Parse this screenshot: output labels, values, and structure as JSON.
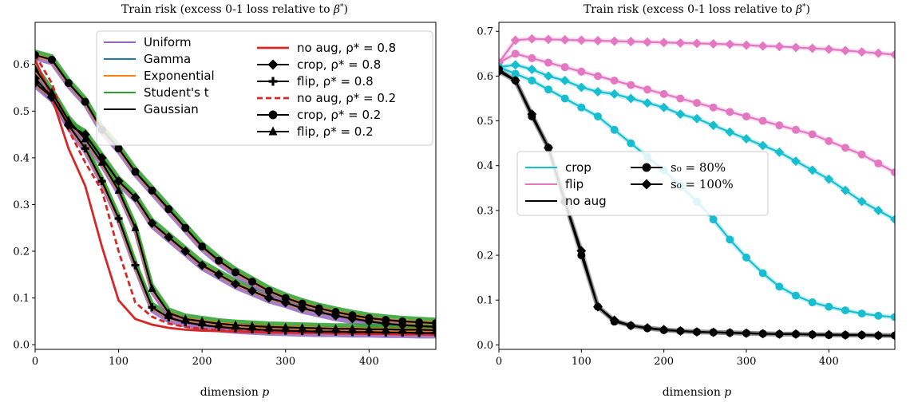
{
  "chart_data": [
    {
      "type": "line",
      "title": "Train risk (excess 0-1 loss relative to β*)",
      "xlabel": "dimension p",
      "ylabel": "",
      "xlim": [
        0,
        480
      ],
      "ylim": [
        -0.01,
        0.69
      ],
      "xticks": [
        "0",
        "100",
        "200",
        "300",
        "400"
      ],
      "xtick_values": [
        0,
        100,
        200,
        300,
        400
      ],
      "yticks": [
        "0.0",
        "0.1",
        "0.2",
        "0.3",
        "0.4",
        "0.5",
        "0.6"
      ],
      "ytick_values": [
        0.0,
        0.1,
        0.2,
        0.3,
        0.4,
        0.5,
        0.6
      ],
      "legend_position": "top-right",
      "legend": [
        {
          "label": "Uniform",
          "color": "#9467bd",
          "style": "solid"
        },
        {
          "label": "Gamma",
          "color": "#1f77b4",
          "style": "solid"
        },
        {
          "label": "Exponential",
          "color": "#ff7f0e",
          "style": "solid"
        },
        {
          "label": "Student's t",
          "color": "#2ca02c",
          "style": "solid"
        },
        {
          "label": "Gaussian",
          "color": "#000000",
          "style": "solid"
        },
        {
          "label": "no aug, ρ* = 0.8",
          "color": "#d62728",
          "style": "solid"
        },
        {
          "label": "crop, ρ* = 0.8",
          "color": "#000000",
          "style": "solid",
          "marker": "diamond"
        },
        {
          "label": "flip, ρ* = 0.8",
          "color": "#000000",
          "style": "solid",
          "marker": "plus"
        },
        {
          "label": "no aug, ρ* = 0.2",
          "color": "#d62728",
          "style": "dashed"
        },
        {
          "label": "crop, ρ* = 0.2",
          "color": "#000000",
          "style": "solid",
          "marker": "circle"
        },
        {
          "label": "flip, ρ* = 0.2",
          "color": "#000000",
          "style": "solid",
          "marker": "triangle"
        }
      ],
      "x": [
        0,
        20,
        40,
        60,
        80,
        100,
        120,
        140,
        160,
        180,
        200,
        220,
        240,
        260,
        280,
        300,
        320,
        340,
        360,
        380,
        400,
        420,
        440,
        460,
        480
      ],
      "series": [
        {
          "name": "no aug, ρ* = 0.8",
          "color": "#d62728",
          "style": "solid",
          "values": [
            0.61,
            0.53,
            0.42,
            0.34,
            0.21,
            0.095,
            0.055,
            0.043,
            0.036,
            0.032,
            0.03,
            0.029,
            0.028,
            0.027,
            0.026,
            0.026,
            0.025,
            0.025,
            0.024,
            0.024,
            0.023,
            0.023,
            0.022,
            0.022,
            0.021
          ]
        },
        {
          "name": "no aug, ρ* = 0.2",
          "color": "#d62728",
          "style": "dashed",
          "values": [
            0.62,
            0.56,
            0.46,
            0.39,
            0.33,
            0.2,
            0.09,
            0.06,
            0.045,
            0.038,
            0.034,
            0.031,
            0.03,
            0.029,
            0.028,
            0.027,
            0.026,
            0.026,
            0.025,
            0.025,
            0.024,
            0.024,
            0.023,
            0.023,
            0.022
          ]
        },
        {
          "name": "crop, ρ* = 0.8",
          "color": "#000000",
          "style": "solid",
          "marker": "diamond",
          "values": [
            0.57,
            0.53,
            0.47,
            0.45,
            0.4,
            0.35,
            0.315,
            0.26,
            0.23,
            0.2,
            0.17,
            0.15,
            0.13,
            0.115,
            0.1,
            0.09,
            0.078,
            0.07,
            0.062,
            0.056,
            0.05,
            0.045,
            0.042,
            0.04,
            0.038
          ]
        },
        {
          "name": "crop, ρ* = 0.2",
          "color": "#000000",
          "style": "solid",
          "marker": "circle",
          "values": [
            0.62,
            0.61,
            0.56,
            0.52,
            0.46,
            0.42,
            0.37,
            0.33,
            0.29,
            0.25,
            0.21,
            0.18,
            0.155,
            0.135,
            0.115,
            0.1,
            0.088,
            0.078,
            0.07,
            0.063,
            0.057,
            0.053,
            0.05,
            0.048,
            0.046
          ]
        },
        {
          "name": "flip, ρ* = 0.8",
          "color": "#000000",
          "style": "solid",
          "marker": "plus",
          "values": [
            0.56,
            0.53,
            0.47,
            0.42,
            0.35,
            0.27,
            0.17,
            0.08,
            0.058,
            0.048,
            0.042,
            0.038,
            0.035,
            0.033,
            0.031,
            0.03,
            0.029,
            0.028,
            0.028,
            0.027,
            0.027,
            0.026,
            0.026,
            0.025,
            0.025
          ]
        },
        {
          "name": "flip, ρ* = 0.2",
          "color": "#000000",
          "style": "solid",
          "marker": "triangle",
          "values": [
            0.59,
            0.54,
            0.48,
            0.44,
            0.39,
            0.33,
            0.25,
            0.12,
            0.068,
            0.055,
            0.05,
            0.045,
            0.042,
            0.04,
            0.038,
            0.037,
            0.036,
            0.035,
            0.034,
            0.034,
            0.033,
            0.033,
            0.032,
            0.032,
            0.031
          ]
        }
      ]
    },
    {
      "type": "line",
      "title": "Train risk (excess 0-1 loss relative to β*)",
      "xlabel": "dimension p",
      "ylabel": "",
      "xlim": [
        0,
        480
      ],
      "ylim": [
        -0.01,
        0.72
      ],
      "xticks": [
        "0",
        "100",
        "200",
        "300",
        "400"
      ],
      "xtick_values": [
        0,
        100,
        200,
        300,
        400
      ],
      "yticks": [
        "0.0",
        "0.1",
        "0.2",
        "0.3",
        "0.4",
        "0.5",
        "0.6",
        "0.7"
      ],
      "ytick_values": [
        0.0,
        0.1,
        0.2,
        0.3,
        0.4,
        0.5,
        0.6,
        0.7
      ],
      "legend_position": "center-left",
      "legend": [
        {
          "label": "crop",
          "color": "#17becf",
          "style": "solid"
        },
        {
          "label": "flip",
          "color": "#e377c2",
          "style": "solid"
        },
        {
          "label": "no aug",
          "color": "#000000",
          "style": "solid"
        },
        {
          "label": "s₀ = 80%",
          "color": "#000000",
          "style": "solid",
          "marker": "circle"
        },
        {
          "label": "s₀ = 100%",
          "color": "#000000",
          "style": "solid",
          "marker": "diamond"
        }
      ],
      "x": [
        0,
        20,
        40,
        60,
        80,
        100,
        120,
        140,
        160,
        180,
        200,
        220,
        240,
        260,
        280,
        300,
        320,
        340,
        360,
        380,
        400,
        420,
        440,
        460,
        480
      ],
      "series": [
        {
          "name": "flip, s₀ = 100%",
          "color": "#e377c2",
          "marker": "diamond",
          "values": [
            0.63,
            0.68,
            0.683,
            0.682,
            0.681,
            0.68,
            0.679,
            0.678,
            0.677,
            0.676,
            0.675,
            0.674,
            0.673,
            0.672,
            0.671,
            0.669,
            0.667,
            0.666,
            0.664,
            0.662,
            0.66,
            0.657,
            0.654,
            0.651,
            0.648
          ]
        },
        {
          "name": "flip, s₀ = 80%",
          "color": "#e377c2",
          "marker": "circle",
          "values": [
            0.63,
            0.65,
            0.64,
            0.63,
            0.62,
            0.61,
            0.6,
            0.59,
            0.58,
            0.57,
            0.56,
            0.55,
            0.54,
            0.53,
            0.52,
            0.51,
            0.5,
            0.49,
            0.48,
            0.47,
            0.455,
            0.44,
            0.425,
            0.405,
            0.385
          ]
        },
        {
          "name": "crop, s₀ = 100%",
          "color": "#17becf",
          "marker": "diamond",
          "values": [
            0.62,
            0.625,
            0.615,
            0.6,
            0.59,
            0.575,
            0.565,
            0.56,
            0.55,
            0.54,
            0.53,
            0.515,
            0.505,
            0.49,
            0.475,
            0.46,
            0.445,
            0.43,
            0.41,
            0.39,
            0.37,
            0.345,
            0.32,
            0.3,
            0.28
          ]
        },
        {
          "name": "crop, s₀ = 80%",
          "color": "#17becf",
          "marker": "circle",
          "values": [
            0.62,
            0.605,
            0.59,
            0.57,
            0.55,
            0.53,
            0.51,
            0.48,
            0.45,
            0.42,
            0.39,
            0.355,
            0.32,
            0.28,
            0.235,
            0.195,
            0.16,
            0.13,
            0.11,
            0.095,
            0.085,
            0.077,
            0.07,
            0.065,
            0.062
          ]
        },
        {
          "name": "no aug, s₀ = 100%",
          "color": "#000000",
          "marker": "diamond",
          "values": [
            0.61,
            0.59,
            0.515,
            0.44,
            0.32,
            0.21,
            0.085,
            0.055,
            0.043,
            0.038,
            0.034,
            0.031,
            0.029,
            0.028,
            0.027,
            0.026,
            0.025,
            0.024,
            0.024,
            0.023,
            0.023,
            0.022,
            0.022,
            0.021,
            0.021
          ]
        },
        {
          "name": "no aug, s₀ = 80%",
          "color": "#000000",
          "marker": "circle",
          "values": [
            0.615,
            0.59,
            0.51,
            0.44,
            0.32,
            0.2,
            0.085,
            0.052,
            0.043,
            0.037,
            0.033,
            0.031,
            0.029,
            0.028,
            0.027,
            0.026,
            0.025,
            0.024,
            0.024,
            0.023,
            0.022,
            0.022,
            0.022,
            0.021,
            0.021
          ]
        }
      ]
    }
  ]
}
